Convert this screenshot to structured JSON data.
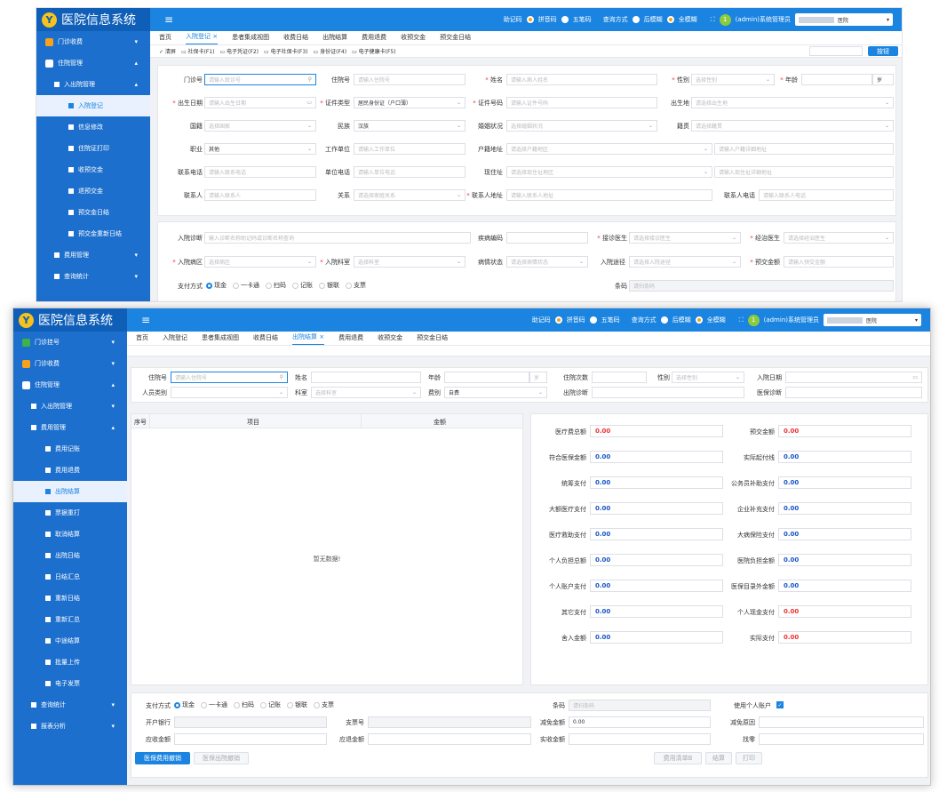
{
  "app": {
    "logo_glyph": "Y",
    "title": "医院信息系统",
    "menu_glyph": "≡"
  },
  "header": {
    "opt1": "助记码",
    "opt2": "拼音码",
    "opt3": "五笔码",
    "opt4": "查询方式",
    "opt5": "后模糊",
    "opt6": "全模糊",
    "fullscreen": "⛶",
    "avatar": "1",
    "user": "(admin)系统管理员",
    "hospital": "医院",
    "caret": "▾"
  },
  "w1": {
    "sidebar": [
      {
        "label": "门诊收费",
        "lvl": 1,
        "ic": "y",
        "ch": "▾"
      },
      {
        "label": "住院管理",
        "lvl": 1,
        "ic": "w",
        "ch": "▴"
      },
      {
        "label": "入出院管理",
        "lvl": 2,
        "ch": "▴"
      },
      {
        "label": "入院登记",
        "lvl": 3,
        "act": true
      },
      {
        "label": "信息修改",
        "lvl": 3
      },
      {
        "label": "住院证打印",
        "lvl": 3
      },
      {
        "label": "收预交金",
        "lvl": 3
      },
      {
        "label": "退预交金",
        "lvl": 3
      },
      {
        "label": "预交金日结",
        "lvl": 3
      },
      {
        "label": "预交金重新日结",
        "lvl": 3
      },
      {
        "label": "费用管理",
        "lvl": 2,
        "ch": "▾"
      },
      {
        "label": "查询统计",
        "lvl": 2,
        "ch": "▾"
      }
    ],
    "tabs": [
      "首页",
      "入院登记 ×",
      "患者集成视图",
      "收费日结",
      "出院结算",
      "费用退费",
      "收预交金",
      "预交金日结"
    ],
    "toolbar": [
      "✓ 清屏",
      "▭ 社保卡(F1)",
      "▭ 电子凭证(F2)",
      "▭ 电子社保卡(F3)",
      "▭ 身份证(F4)",
      "▭ 电子健康卡(F5)"
    ],
    "search_btn": "按钮",
    "labels": {
      "mzh": "门诊号",
      "zyh": "住院号",
      "xm": "姓名",
      "xb": "性别",
      "nl": "年龄",
      "csrq": "出生日期",
      "zjlx": "证件类型",
      "zjhm": "证件号码",
      "csd": "出生地",
      "gj": "国籍",
      "mz": "民族",
      "hyzk": "婚姻状况",
      "jg": "籍贯",
      "zy": "职业",
      "gzdw": "工作单位",
      "hjdz": "户籍地址",
      "lxdh": "联系电话",
      "dwdh": "单位电话",
      "xzz": "现住址",
      "lxr": "联系人",
      "gx": "关系",
      "lxrdz": "联系人地址",
      "lxrdh": "联系人电话",
      "ryzd": "入院诊断",
      "jbbm": "疾病编码",
      "jzys": "接诊医生",
      "jgys": "经治医生",
      "rybq": "入院病区",
      "ryks": "入院科室",
      "bqzt": "病情状态",
      "rytj": "入院途径",
      "yjje": "预交金额",
      "zffs": "支付方式",
      "tm": "条码"
    },
    "ph": {
      "mzh": "请输入就诊号",
      "zyh": "请输入住院号",
      "xm": "请输入病人姓名",
      "xb": "选择性别",
      "age_unit": "岁",
      "csrq": "请输入出生日期",
      "zjlx": "居民身份证（户口薄）",
      "zjhm": "请输入证件号码",
      "csd": "请选择出生地",
      "gj": "选择国家",
      "mz": "汉族",
      "hyzk": "选择婚姻状况",
      "jg": "请选择籍贯",
      "zy": "其他",
      "gzdw": "请输入工作单位",
      "hjdz": "请选择户籍地区",
      "hjxx": "请输入户籍详细地址",
      "lxdh": "请输入联系电话",
      "dwdh": "请输入单位电话",
      "xzz": "请选择现住址地区",
      "xzxx": "请输入现住址详细地址",
      "lxr": "请输入联系人",
      "gx": "请选择家庭关系",
      "lxrdz": "请输入联系人地址",
      "lxrdh": "请输入联系人电话",
      "ryzd": "输入诊断名称助记码或诊断名称查询",
      "jzys": "请选择接诊医生",
      "jgys": "请选择经治医生",
      "rybq": "选择病区",
      "ryks": "选择科室",
      "bqzt": "请选择病情状态",
      "rytj": "请选择入院途径",
      "yjje": "请输入预交金额",
      "tm": "请扫条码"
    },
    "pay": [
      "现金",
      "一卡通",
      "扫码",
      "记账",
      "银联",
      "支票"
    ]
  },
  "w2": {
    "sidebar": [
      {
        "label": "门诊挂号",
        "lvl": 1,
        "ic": "g",
        "ch": "▾"
      },
      {
        "label": "门诊收费",
        "lvl": 1,
        "ic": "y",
        "ch": "▾"
      },
      {
        "label": "住院管理",
        "lvl": 1,
        "ic": "w",
        "ch": "▴"
      },
      {
        "label": "入出院管理",
        "lvl": 2,
        "ch": "▾"
      },
      {
        "label": "费用管理",
        "lvl": 2,
        "ch": "▴"
      },
      {
        "label": "费用记账",
        "lvl": 3
      },
      {
        "label": "费用退费",
        "lvl": 3
      },
      {
        "label": "出院结算",
        "lvl": 3,
        "act": true
      },
      {
        "label": "票据重打",
        "lvl": 3
      },
      {
        "label": "取消结算",
        "lvl": 3
      },
      {
        "label": "出院日结",
        "lvl": 3
      },
      {
        "label": "日结汇总",
        "lvl": 3
      },
      {
        "label": "重新日结",
        "lvl": 3
      },
      {
        "label": "重新汇总",
        "lvl": 3
      },
      {
        "label": "中途结算",
        "lvl": 3
      },
      {
        "label": "批量上传",
        "lvl": 3
      },
      {
        "label": "电子发票",
        "lvl": 3
      },
      {
        "label": "查询统计",
        "lvl": 2,
        "ch": "▾"
      },
      {
        "label": "报表分析",
        "lvl": 2,
        "ch": "▾"
      }
    ],
    "tabs": [
      "首页",
      "入院登记",
      "患者集成视图",
      "收费日结",
      "出院结算 ×",
      "费用退费",
      "收预交金",
      "预交金日结"
    ],
    "labels": {
      "zyh": "住院号",
      "xm": "姓名",
      "nl": "年龄",
      "zycs": "住院次数",
      "xb": "性别",
      "ryrq": "入院日期",
      "rylb": "人员类别",
      "ks": "科室",
      "fb": "费别",
      "cyzd": "出院诊断",
      "ybzd": "医保诊断"
    },
    "ph": {
      "zyh": "请输入住院号",
      "age_unit": "岁",
      "xb": "选择性别",
      "ks": "选择科室",
      "fb": "自费"
    },
    "table": {
      "cols": [
        "序号",
        "项目",
        "金额"
      ],
      "empty": "暂无数据!"
    },
    "fees_left": [
      {
        "label": "医疗费总额",
        "value": "0.00",
        "color": "red"
      },
      {
        "label": "符合医保金额",
        "value": "0.00",
        "color": "blu"
      },
      {
        "label": "统筹支付",
        "value": "0.00",
        "color": "blu"
      },
      {
        "label": "大额医疗支付",
        "value": "0.00",
        "color": "blu"
      },
      {
        "label": "医疗救助支付",
        "value": "0.00",
        "color": "blu"
      },
      {
        "label": "个人负担总额",
        "value": "0.00",
        "color": "blu"
      },
      {
        "label": "个人账户支付",
        "value": "0.00",
        "color": "blu"
      },
      {
        "label": "其它支付",
        "value": "0.00",
        "color": "blu"
      },
      {
        "label": "舍入金额",
        "value": "0.00",
        "color": "blu"
      }
    ],
    "fees_right": [
      {
        "label": "预交金额",
        "value": "0.00",
        "color": "red"
      },
      {
        "label": "实际起付线",
        "value": "0.00",
        "color": "blu"
      },
      {
        "label": "公务员补助支付",
        "value": "0.00",
        "color": "blu"
      },
      {
        "label": "企业补充支付",
        "value": "0.00",
        "color": "blu"
      },
      {
        "label": "大病保险支付",
        "value": "0.00",
        "color": "blu"
      },
      {
        "label": "医院负担金额",
        "value": "0.00",
        "color": "blu"
      },
      {
        "label": "医保目录外金额",
        "value": "0.00",
        "color": "blu"
      },
      {
        "label": "个人现金支付",
        "value": "0.00",
        "color": "red"
      },
      {
        "label": "实际支付",
        "value": "0.00",
        "color": "red"
      }
    ],
    "bottom": {
      "zffs": "支付方式",
      "pay": [
        "现金",
        "一卡通",
        "扫码",
        "记账",
        "银联",
        "支票"
      ],
      "tm": "条码",
      "tm_ph": "请扫条码",
      "use_acct": "使用个人账户",
      "khyh": "开户银行",
      "zph": "支票号",
      "jmje": "减免金额",
      "jmje_v": "0.00",
      "jmyy": "减免原因",
      "yszje": "应收金额",
      "ytje": "应退金额",
      "sszje": "实收金额",
      "zl": "找零",
      "btn1": "医保费用撤销",
      "btn2": "医保出院撤销",
      "btn3": "费用清单B",
      "btn4": "结算",
      "btn5": "打印"
    }
  }
}
